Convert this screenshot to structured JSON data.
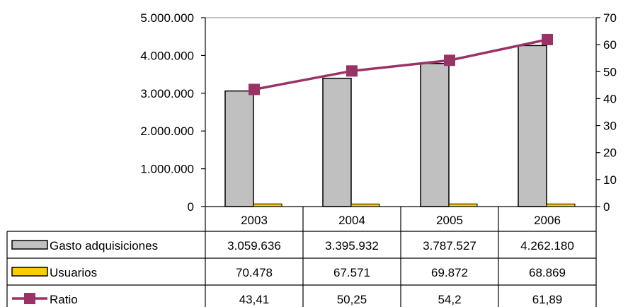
{
  "chart_data": {
    "type": "bar",
    "categories": [
      "2003",
      "2004",
      "2005",
      "2006"
    ],
    "series": [
      {
        "name": "Gasto adquisiciones",
        "kind": "bar",
        "axis": "left",
        "color": "#c0c0c0",
        "values": [
          3059636,
          3395932,
          3787527,
          4262180
        ],
        "labels": [
          "3.059.636",
          "3.395.932",
          "3.787.527",
          "4.262.180"
        ]
      },
      {
        "name": "Usuarios",
        "kind": "bar",
        "axis": "left",
        "color": "#ffcc00",
        "values": [
          70478,
          67571,
          69872,
          68869
        ],
        "labels": [
          "70.478",
          "67.571",
          "69.872",
          "68.869"
        ]
      },
      {
        "name": "Ratio",
        "kind": "line",
        "axis": "right",
        "color": "#993366",
        "values": [
          43.41,
          50.25,
          54.2,
          61.89
        ],
        "labels": [
          "43,41",
          "50,25",
          "54,2",
          "61,89"
        ]
      }
    ],
    "y_left": {
      "ylim": [
        0,
        5000000
      ],
      "ticks": [
        "0",
        "1.000.000",
        "2.000.000",
        "3.000.000",
        "4.000.000",
        "5.000.000"
      ]
    },
    "y_right": {
      "ylim": [
        0,
        70
      ],
      "ticks": [
        "0",
        "10",
        "20",
        "30",
        "40",
        "50",
        "60",
        "70"
      ]
    },
    "title": "",
    "xlabel": "",
    "legend": "data-table",
    "grid": false
  }
}
